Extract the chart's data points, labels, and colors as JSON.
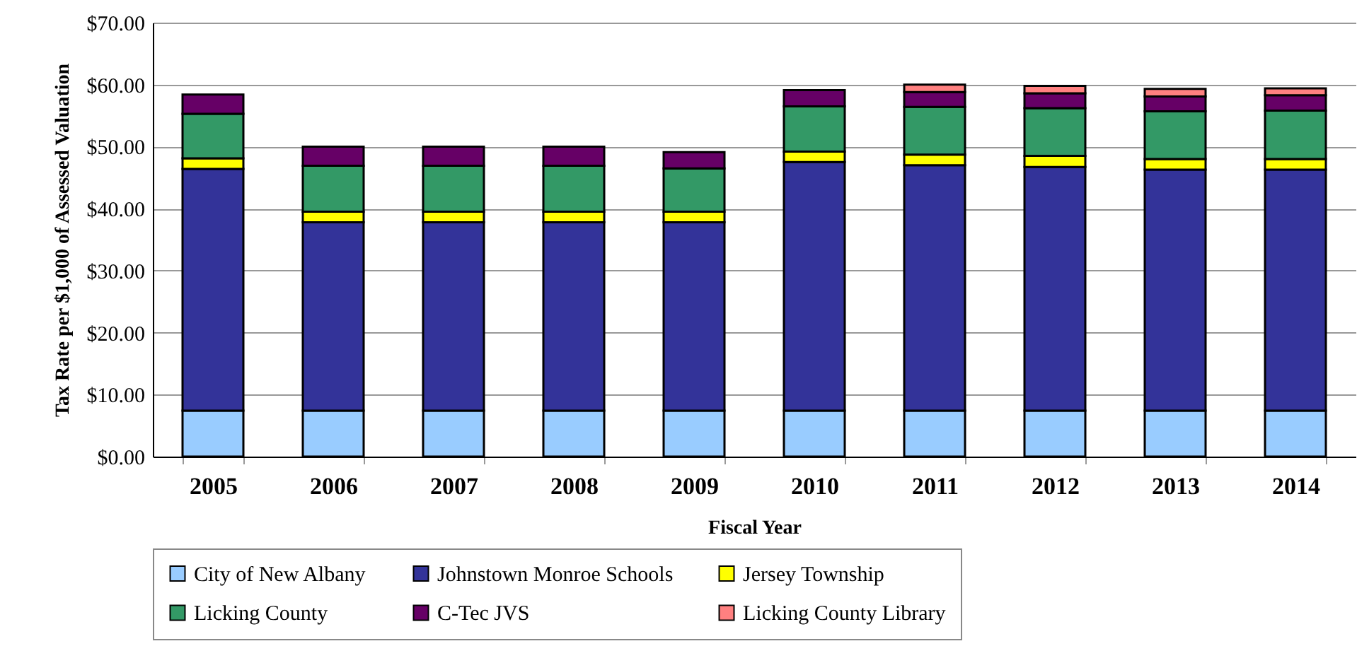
{
  "chart_data": {
    "type": "bar",
    "stacked": true,
    "xlabel": "Fiscal Year",
    "ylabel": "Tax Rate per $1,000 of Assessed Valuation",
    "categories": [
      "2005",
      "2006",
      "2007",
      "2008",
      "2009",
      "2010",
      "2011",
      "2012",
      "2013",
      "2014"
    ],
    "series": [
      {
        "name": "City of New Albany",
        "color": "#99ccff",
        "values": [
          7.4,
          7.4,
          7.4,
          7.4,
          7.4,
          7.4,
          7.4,
          7.4,
          7.4,
          7.4
        ]
      },
      {
        "name": "Johnstown Monroe Schools",
        "color": "#333399",
        "values": [
          39.0,
          30.4,
          30.4,
          30.4,
          30.4,
          40.1,
          39.6,
          39.3,
          38.9,
          38.9
        ]
      },
      {
        "name": "Jersey Township",
        "color": "#ffff00",
        "values": [
          1.7,
          1.7,
          1.7,
          1.7,
          1.7,
          1.7,
          1.7,
          1.8,
          1.7,
          1.7
        ]
      },
      {
        "name": "Licking County",
        "color": "#339966",
        "values": [
          7.2,
          7.4,
          7.4,
          7.4,
          7.0,
          7.3,
          7.7,
          7.7,
          7.7,
          7.8
        ]
      },
      {
        "name": "C-Tec JVS",
        "color": "#660066",
        "values": [
          3.1,
          3.1,
          3.1,
          3.1,
          2.6,
          2.6,
          2.4,
          2.4,
          2.4,
          2.5
        ]
      },
      {
        "name": "Licking County Library",
        "color": "#ff8080",
        "values": [
          null,
          null,
          null,
          null,
          null,
          null,
          1.2,
          1.2,
          1.2,
          1.1
        ]
      }
    ],
    "ylim": [
      0,
      70
    ],
    "yticks": [
      {
        "value": 0,
        "label": "$0.00"
      },
      {
        "value": 10,
        "label": "$10.00"
      },
      {
        "value": 20,
        "label": "$20.00"
      },
      {
        "value": 30,
        "label": "$30.00"
      },
      {
        "value": 40,
        "label": "$40.00"
      },
      {
        "value": 50,
        "label": "$50.00"
      },
      {
        "value": 60,
        "label": "$60.00"
      },
      {
        "value": 70,
        "label": "$70.00"
      }
    ],
    "grid": "y",
    "legend": "bottom"
  }
}
